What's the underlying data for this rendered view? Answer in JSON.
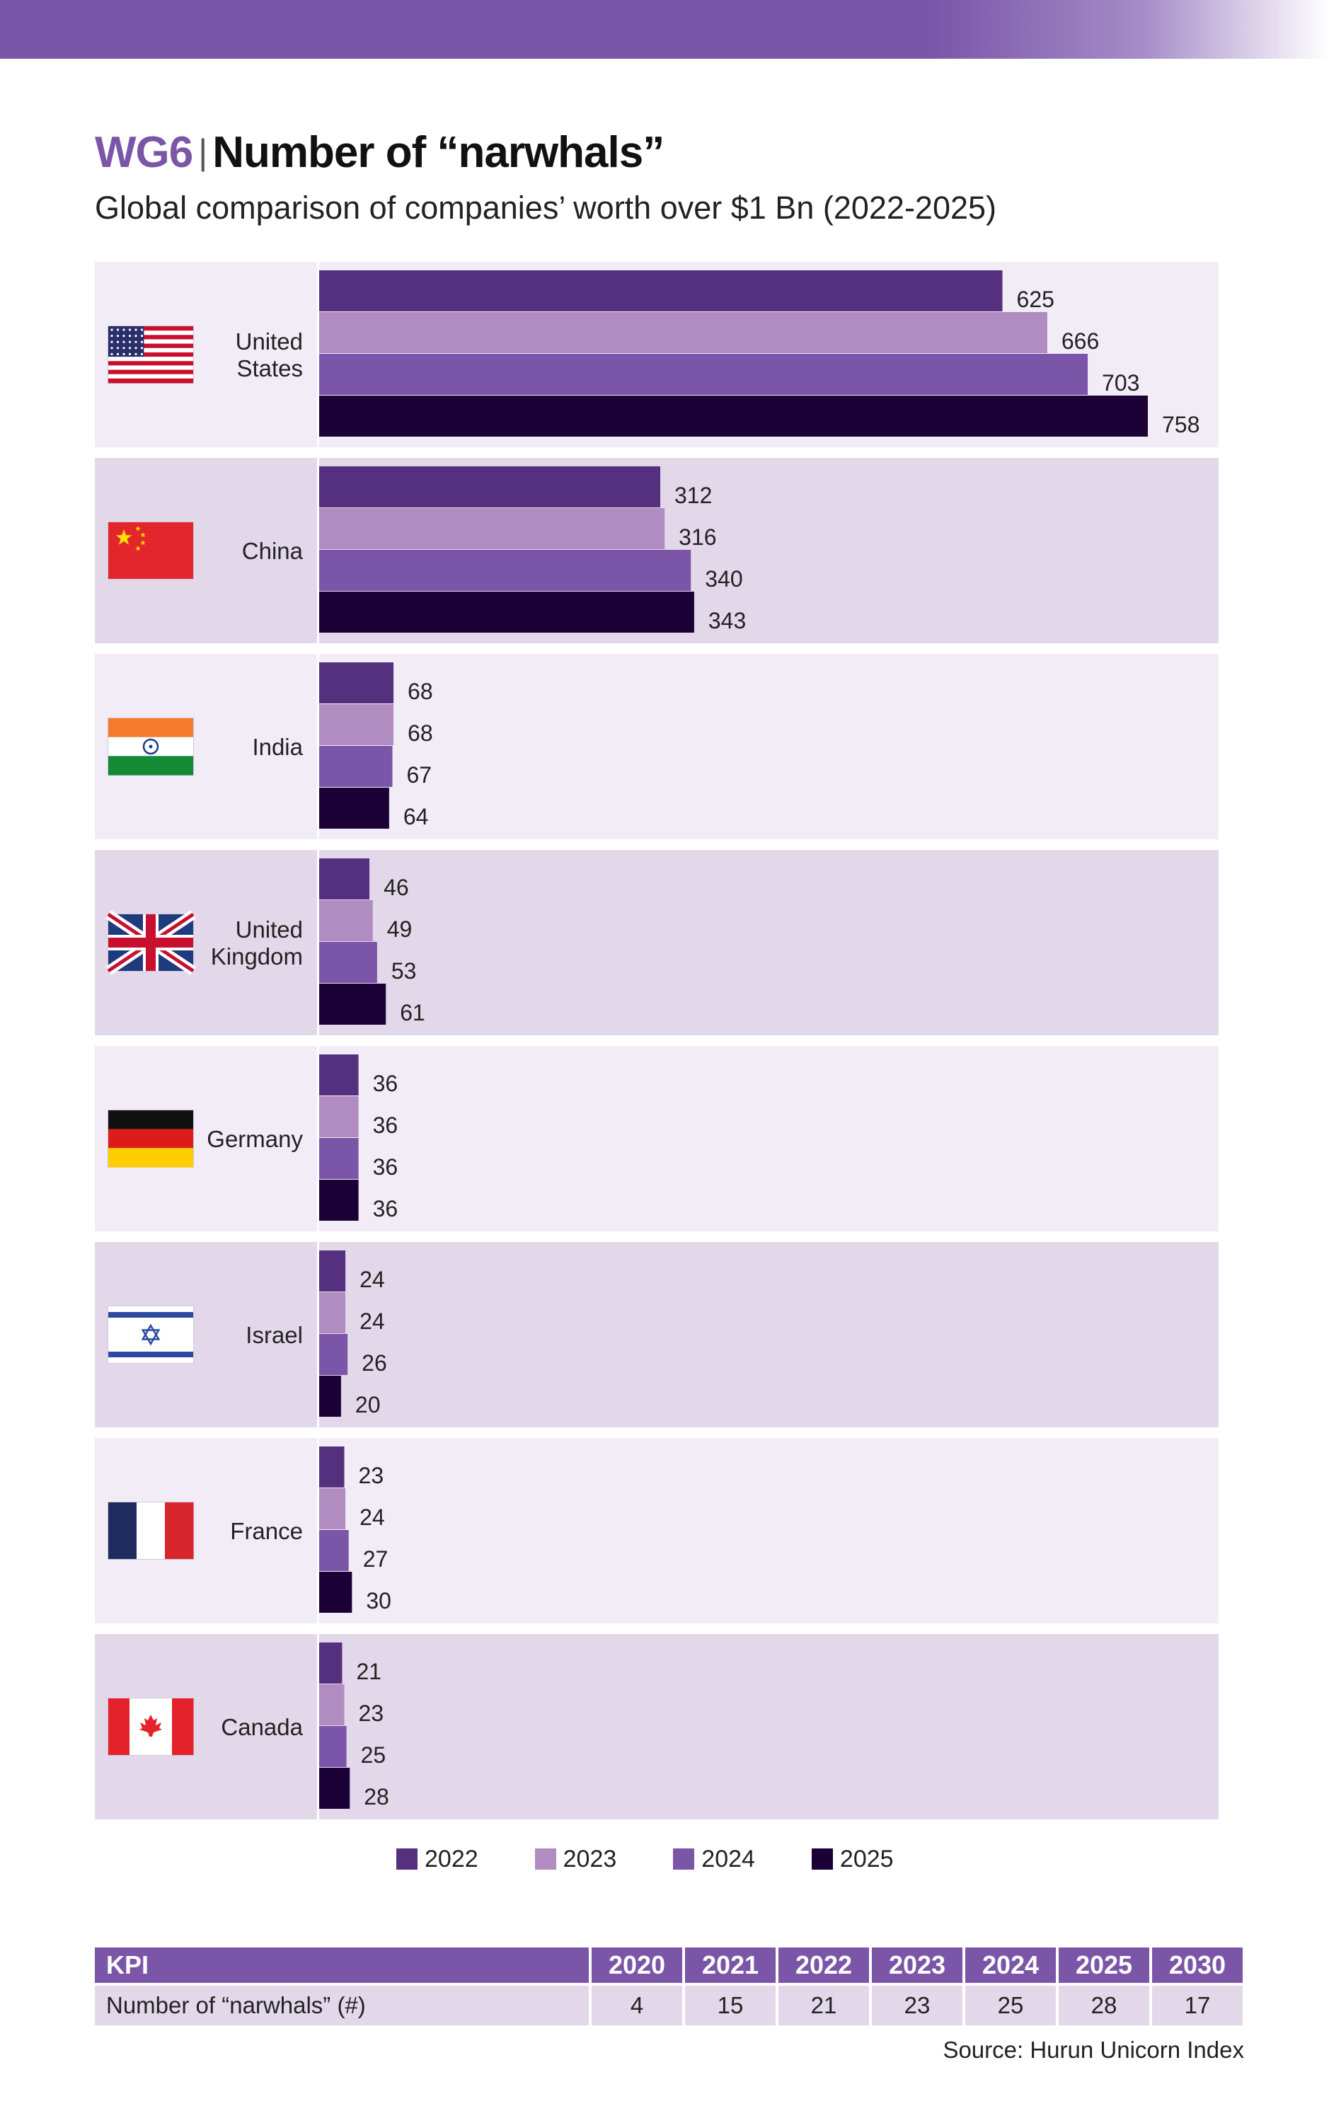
{
  "header": {
    "code": "WG6",
    "separator": "|",
    "title": "Number of “narwhals”",
    "subtitle": "Global comparison of companies’ worth over $1 Bn (2022-2025)"
  },
  "colors": {
    "2022": "#55307f",
    "2023": "#b08cc0",
    "2024": "#7b55a8",
    "2025": "#1b0136",
    "band_light": "#f1ecf6",
    "band_dark": "#e3d8ea",
    "accent": "#7b55a8"
  },
  "chart_data": {
    "type": "bar",
    "orientation": "horizontal",
    "title": "Number of “narwhals”",
    "subtitle": "Global comparison of companies’ worth over $1 Bn (2022-2025)",
    "categories": [
      "United States",
      "China",
      "India",
      "United Kingdom",
      "Germany",
      "Israel",
      "France",
      "Canada"
    ],
    "category_labels": [
      [
        "United",
        "States"
      ],
      [
        "China"
      ],
      [
        "India"
      ],
      [
        "United",
        "Kingdom"
      ],
      [
        "Germany"
      ],
      [
        "Israel"
      ],
      [
        "France"
      ],
      [
        "Canada"
      ]
    ],
    "flags": [
      "us-flag-icon",
      "china-flag-icon",
      "india-flag-icon",
      "uk-flag-icon",
      "germany-flag-icon",
      "israel-flag-icon",
      "france-flag-icon",
      "canada-flag-icon"
    ],
    "series": [
      {
        "name": "2022",
        "values": [
          625,
          312,
          68,
          46,
          36,
          24,
          23,
          21
        ]
      },
      {
        "name": "2023",
        "values": [
          666,
          316,
          68,
          49,
          36,
          24,
          24,
          23
        ]
      },
      {
        "name": "2024",
        "values": [
          703,
          340,
          67,
          53,
          36,
          26,
          27,
          25
        ]
      },
      {
        "name": "2025",
        "values": [
          758,
          343,
          64,
          61,
          36,
          20,
          30,
          28
        ]
      }
    ],
    "xlim": [
      0,
      800
    ],
    "xlabel": "",
    "ylabel": "",
    "legend": "bottom-center",
    "grid": false
  },
  "legend_items": [
    "2022",
    "2023",
    "2024",
    "2025"
  ],
  "kpi": {
    "header_label": "KPI",
    "years": [
      "2020",
      "2021",
      "2022",
      "2023",
      "2024",
      "2025",
      "2030"
    ],
    "row_label": "Number of “narwhals” (#)",
    "values": [
      "4",
      "15",
      "21",
      "23",
      "25",
      "28",
      "17"
    ]
  },
  "source": "Source: Hurun Unicorn Index"
}
